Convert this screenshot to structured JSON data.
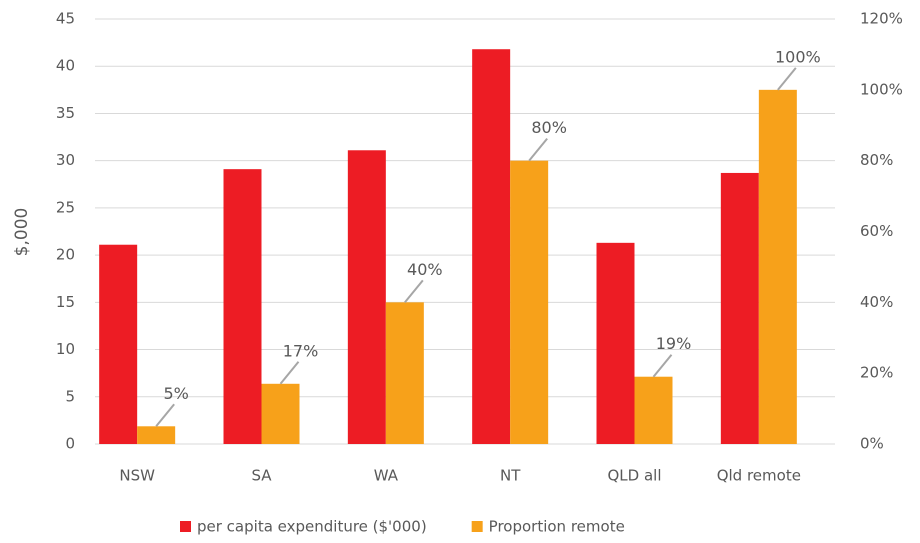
{
  "chart_data": {
    "type": "bar",
    "y_label": "$,000",
    "categories": [
      "NSW",
      "SA",
      "WA",
      "NT",
      "QLD all",
      "Qld remote"
    ],
    "series": [
      {
        "name": "per capita expenditure ($'000)",
        "color": "#ed1c24",
        "values": [
          21.1,
          29.1,
          31.1,
          41.8,
          21.3,
          28.7
        ]
      },
      {
        "name": "Proportion remote",
        "color": "#f7a11a",
        "axis": "y2",
        "values": [
          5,
          17,
          40,
          80,
          19,
          100
        ],
        "value_labels": [
          "5%",
          "17%",
          "40%",
          "80%",
          "19%",
          "100%"
        ]
      }
    ],
    "ylim": [
      0,
      45
    ],
    "yticks": [
      0,
      5,
      10,
      15,
      20,
      25,
      30,
      35,
      40,
      45
    ],
    "y2lim": [
      0,
      120
    ],
    "y2ticks": [
      {
        "value": 0,
        "label": "0%"
      },
      {
        "value": 20,
        "label": "20%"
      },
      {
        "value": 40,
        "label": "40%"
      },
      {
        "value": 60,
        "label": "60%"
      },
      {
        "value": 80,
        "label": "80%"
      },
      {
        "value": 100,
        "label": "100%"
      },
      {
        "value": 120,
        "label": "120%"
      }
    ],
    "grid": true,
    "legend": "bottom"
  }
}
